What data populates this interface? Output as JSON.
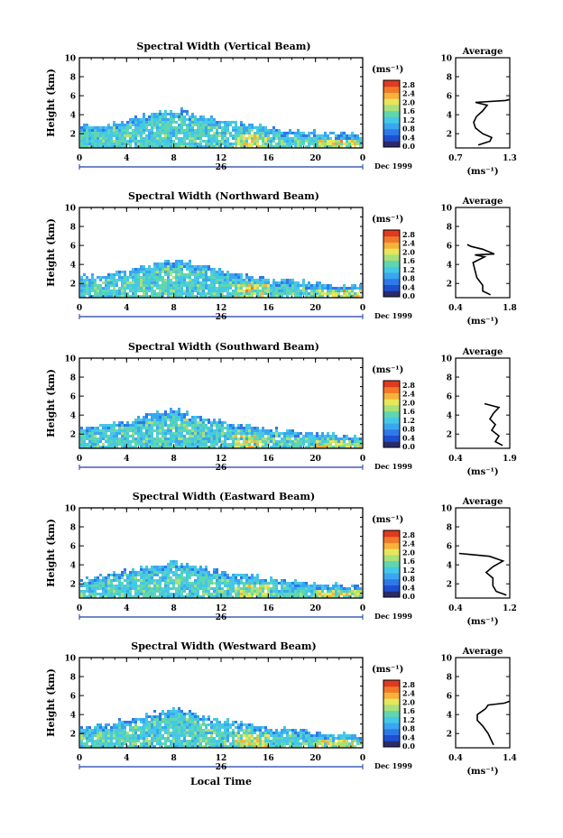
{
  "colors": {
    "colormap": [
      "#2b2b6b",
      "#1e4fd0",
      "#2e78e8",
      "#3aa6f0",
      "#45c8e6",
      "#5fd6b0",
      "#a9e07a",
      "#e8e65a",
      "#f6b23a",
      "#f07a2a",
      "#e03a1f"
    ],
    "ink": "#000000"
  },
  "chart_data": [
    {
      "type": "heatmap",
      "title": "Spectral Width (Vertical Beam)",
      "ylabel": "Height (km)",
      "xlabel": "",
      "x_ticks": [
        "0",
        "4",
        "8",
        "12",
        "16",
        "20",
        "0"
      ],
      "day_label": "26",
      "date_label": "Dec 1999",
      "y_ticks": [
        "2",
        "4",
        "6",
        "8",
        "10"
      ],
      "xlim": [
        0,
        24
      ],
      "ylim": [
        0.5,
        10
      ],
      "colorbar": {
        "label": "(ms⁻¹)",
        "ticks": [
          "0.0",
          "0.4",
          "0.8",
          "1.2",
          "1.6",
          "2.0",
          "2.4",
          "2.8"
        ],
        "range": [
          0,
          2.8
        ]
      },
      "cloud_top_km": [
        [
          0,
          2.9
        ],
        [
          2,
          3.1
        ],
        [
          4,
          3.6
        ],
        [
          6,
          4.2
        ],
        [
          8,
          4.8
        ],
        [
          10,
          4.1
        ],
        [
          12,
          3.5
        ],
        [
          14,
          3.1
        ],
        [
          16,
          2.8
        ],
        [
          18,
          2.5
        ],
        [
          20,
          2.3
        ],
        [
          22,
          2.1
        ],
        [
          24,
          2.0
        ]
      ],
      "average": {
        "title": "Average",
        "xlabel": "(ms⁻¹)",
        "x_ticks": [
          "0.7",
          "1.3"
        ],
        "xlim": [
          0.7,
          1.3
        ],
        "y_ticks": [
          "2",
          "4",
          "6",
          "8",
          "10"
        ],
        "ylim": [
          0.5,
          10
        ],
        "profile": [
          [
            0.95,
            0.8
          ],
          [
            1.08,
            1.2
          ],
          [
            1.1,
            1.6
          ],
          [
            1.0,
            2.0
          ],
          [
            0.92,
            2.6
          ],
          [
            0.9,
            3.2
          ],
          [
            0.93,
            3.8
          ],
          [
            1.0,
            4.4
          ],
          [
            1.05,
            5.0
          ],
          [
            0.92,
            5.3
          ],
          [
            1.25,
            5.5
          ],
          [
            1.3,
            5.6
          ]
        ]
      }
    },
    {
      "type": "heatmap",
      "title": "Spectral Width (Northward Beam)",
      "ylabel": "Height (km)",
      "xlabel": "",
      "x_ticks": [
        "0",
        "4",
        "8",
        "12",
        "16",
        "20",
        "0"
      ],
      "day_label": "26",
      "date_label": "Dec 1999",
      "y_ticks": [
        "2",
        "4",
        "6",
        "8",
        "10"
      ],
      "xlim": [
        0,
        24
      ],
      "ylim": [
        0.5,
        10
      ],
      "colorbar": {
        "label": "(ms⁻¹)",
        "ticks": [
          "0.0",
          "0.4",
          "0.8",
          "1.2",
          "1.6",
          "2.0",
          "2.4",
          "2.8"
        ],
        "range": [
          0,
          2.8
        ]
      },
      "cloud_top_km": [
        [
          0,
          2.8
        ],
        [
          2,
          3.0
        ],
        [
          4,
          3.5
        ],
        [
          6,
          4.1
        ],
        [
          8,
          4.7
        ],
        [
          10,
          4.0
        ],
        [
          12,
          3.4
        ],
        [
          14,
          3.0
        ],
        [
          16,
          2.7
        ],
        [
          18,
          2.4
        ],
        [
          20,
          2.2
        ],
        [
          22,
          2.0
        ],
        [
          24,
          1.9
        ]
      ],
      "average": {
        "title": "Average",
        "xlabel": "(ms⁻¹)",
        "x_ticks": [
          "0.4",
          "1.8"
        ],
        "xlim": [
          0.4,
          1.8
        ],
        "y_ticks": [
          "2",
          "4",
          "6",
          "8",
          "10"
        ],
        "ylim": [
          0.5,
          10
        ],
        "profile": [
          [
            1.3,
            0.8
          ],
          [
            1.1,
            1.2
          ],
          [
            1.1,
            1.8
          ],
          [
            0.95,
            2.6
          ],
          [
            0.9,
            3.4
          ],
          [
            0.85,
            4.2
          ],
          [
            1.15,
            4.8
          ],
          [
            0.9,
            5.0
          ],
          [
            1.4,
            5.1
          ],
          [
            1.1,
            5.6
          ],
          [
            0.8,
            5.9
          ],
          [
            0.7,
            6.1
          ]
        ]
      }
    },
    {
      "type": "heatmap",
      "title": "Spectral Width (Southward Beam)",
      "ylabel": "Height (km)",
      "xlabel": "",
      "x_ticks": [
        "0",
        "4",
        "8",
        "12",
        "16",
        "20",
        "0"
      ],
      "day_label": "26",
      "date_label": "Dec 1999",
      "y_ticks": [
        "2",
        "4",
        "6",
        "8",
        "10"
      ],
      "xlim": [
        0,
        24
      ],
      "ylim": [
        0.5,
        10
      ],
      "colorbar": {
        "label": "(ms⁻¹)",
        "ticks": [
          "0.0",
          "0.4",
          "0.8",
          "1.2",
          "1.6",
          "2.0",
          "2.4",
          "2.8"
        ],
        "range": [
          0,
          2.8
        ]
      },
      "cloud_top_km": [
        [
          0,
          2.9
        ],
        [
          2,
          3.1
        ],
        [
          4,
          3.6
        ],
        [
          6,
          4.2
        ],
        [
          8,
          4.7
        ],
        [
          10,
          4.0
        ],
        [
          12,
          3.5
        ],
        [
          14,
          3.0
        ],
        [
          16,
          2.7
        ],
        [
          18,
          2.4
        ],
        [
          20,
          2.2
        ],
        [
          22,
          2.0
        ],
        [
          24,
          1.9
        ]
      ],
      "average": {
        "title": "Average",
        "xlabel": "(ms⁻¹)",
        "x_ticks": [
          "0.4",
          "1.9"
        ],
        "xlim": [
          0.4,
          1.9
        ],
        "y_ticks": [
          "2",
          "4",
          "6",
          "8",
          "10"
        ],
        "ylim": [
          0.5,
          10
        ],
        "profile": [
          [
            1.7,
            0.8
          ],
          [
            1.5,
            1.2
          ],
          [
            1.6,
            1.8
          ],
          [
            1.4,
            2.4
          ],
          [
            1.5,
            3.0
          ],
          [
            1.35,
            3.6
          ],
          [
            1.45,
            4.2
          ],
          [
            1.6,
            4.8
          ],
          [
            1.4,
            5.0
          ],
          [
            1.2,
            5.2
          ]
        ]
      }
    },
    {
      "type": "heatmap",
      "title": "Spectral Width (Eastward Beam)",
      "ylabel": "Height (km)",
      "xlabel": "",
      "x_ticks": [
        "0",
        "4",
        "8",
        "12",
        "16",
        "20",
        "0"
      ],
      "day_label": "26",
      "date_label": "Dec 1999",
      "y_ticks": [
        "2",
        "4",
        "6",
        "8",
        "10"
      ],
      "xlim": [
        0,
        24
      ],
      "ylim": [
        0.5,
        10
      ],
      "colorbar": {
        "label": "(ms⁻¹)",
        "ticks": [
          "0.0",
          "0.4",
          "0.8",
          "1.2",
          "1.6",
          "2.0",
          "2.4",
          "2.8"
        ],
        "range": [
          0,
          2.8
        ]
      },
      "cloud_top_km": [
        [
          0,
          2.8
        ],
        [
          2,
          3.0
        ],
        [
          4,
          3.5
        ],
        [
          6,
          4.1
        ],
        [
          8,
          4.6
        ],
        [
          10,
          4.0
        ],
        [
          12,
          3.4
        ],
        [
          14,
          3.0
        ],
        [
          16,
          2.7
        ],
        [
          18,
          2.4
        ],
        [
          20,
          2.2
        ],
        [
          22,
          2.0
        ],
        [
          24,
          1.9
        ]
      ],
      "average": {
        "title": "Average",
        "xlabel": "(ms⁻¹)",
        "x_ticks": [
          "0.4",
          "1.2"
        ],
        "xlim": [
          0.4,
          1.2
        ],
        "y_ticks": [
          "2",
          "4",
          "6",
          "8",
          "10"
        ],
        "ylim": [
          0.5,
          10
        ],
        "profile": [
          [
            1.15,
            0.8
          ],
          [
            1.0,
            1.2
          ],
          [
            0.95,
            1.8
          ],
          [
            0.95,
            2.6
          ],
          [
            0.85,
            3.2
          ],
          [
            0.95,
            3.8
          ],
          [
            1.1,
            4.4
          ],
          [
            0.9,
            4.9
          ],
          [
            0.6,
            5.1
          ],
          [
            0.45,
            5.2
          ]
        ]
      }
    },
    {
      "type": "heatmap",
      "title": "Spectral Width (Westward Beam)",
      "ylabel": "Height (km)",
      "xlabel": "Local Time",
      "x_ticks": [
        "0",
        "4",
        "8",
        "12",
        "16",
        "20",
        "0"
      ],
      "day_label": "26",
      "date_label": "Dec 1999",
      "y_ticks": [
        "2",
        "4",
        "6",
        "8",
        "10"
      ],
      "xlim": [
        0,
        24
      ],
      "ylim": [
        0.5,
        10
      ],
      "colorbar": {
        "label": "(ms⁻¹)",
        "ticks": [
          "0.0",
          "0.4",
          "0.8",
          "1.2",
          "1.6",
          "2.0",
          "2.4",
          "2.8"
        ],
        "range": [
          0,
          2.8
        ]
      },
      "cloud_top_km": [
        [
          0,
          2.9
        ],
        [
          2,
          3.1
        ],
        [
          4,
          3.6
        ],
        [
          6,
          4.2
        ],
        [
          8,
          4.8
        ],
        [
          10,
          4.1
        ],
        [
          12,
          3.5
        ],
        [
          14,
          3.1
        ],
        [
          16,
          2.8
        ],
        [
          18,
          2.5
        ],
        [
          20,
          2.3
        ],
        [
          22,
          2.1
        ],
        [
          24,
          2.0
        ]
      ],
      "average": {
        "title": "Average",
        "xlabel": "(ms⁻¹)",
        "x_ticks": [
          "0.4",
          "1.4"
        ],
        "xlim": [
          0.4,
          1.4
        ],
        "y_ticks": [
          "2",
          "4",
          "6",
          "8",
          "10"
        ],
        "ylim": [
          0.5,
          10
        ],
        "profile": [
          [
            1.1,
            0.8
          ],
          [
            1.05,
            1.4
          ],
          [
            1.0,
            2.0
          ],
          [
            0.9,
            2.8
          ],
          [
            0.8,
            3.4
          ],
          [
            0.8,
            4.0
          ],
          [
            0.95,
            4.6
          ],
          [
            1.0,
            5.0
          ],
          [
            1.3,
            5.2
          ],
          [
            1.4,
            5.4
          ]
        ]
      }
    }
  ]
}
